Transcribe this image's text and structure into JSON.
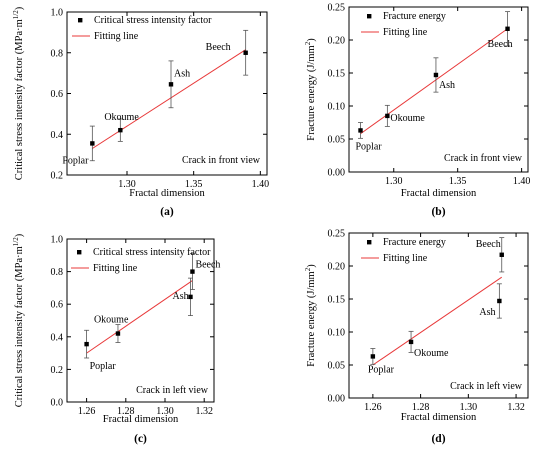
{
  "figure": {
    "colors": {
      "fit": "#e8393a",
      "points": "#000000",
      "error": "#555555"
    }
  },
  "chart_data": [
    {
      "panel": "a",
      "caption": "(a)",
      "type": "scatter",
      "xlabel": "Fractal dimension",
      "ylabel": "Critical stress intensity factor (MPa·m^1/2)",
      "ylabel_main": "Critical stress intensity factor (MPa·m",
      "ylabel_sup": "1/2",
      "ylabel_end": ")",
      "xlim": [
        1.255,
        1.405
      ],
      "ylim": [
        0.2,
        1.0
      ],
      "xticks": [
        1.3,
        1.35,
        1.4
      ],
      "xtick_labels": [
        "1.30",
        "1.35",
        "1.40"
      ],
      "yticks": [
        0.2,
        0.4,
        0.6,
        0.8,
        1.0
      ],
      "ytick_labels": [
        "0.2",
        "0.4",
        "0.6",
        "0.8",
        "1.0"
      ],
      "legend": {
        "position": "top-left",
        "points_label": "Critical stress intensity factor",
        "fit_label": "Fitting line"
      },
      "note": "Crack in front view",
      "points": [
        {
          "label": "Poplar",
          "x": 1.274,
          "y": 0.355,
          "err": 0.085
        },
        {
          "label": "Okoume",
          "x": 1.295,
          "y": 0.42,
          "err": 0.055
        },
        {
          "label": "Ash",
          "x": 1.333,
          "y": 0.645,
          "err": 0.115
        },
        {
          "label": "Beech",
          "x": 1.389,
          "y": 0.8,
          "err": 0.11
        }
      ],
      "fit": {
        "x": [
          1.274,
          1.389
        ],
        "y": [
          0.33,
          0.815
        ]
      }
    },
    {
      "panel": "b",
      "caption": "(b)",
      "type": "scatter",
      "xlabel": "Fractal dimension",
      "ylabel": "Fracture energy (J/mm^2)",
      "ylabel_main": "Fracture energy (J/mm",
      "ylabel_sup": "2",
      "ylabel_end": ")",
      "xlim": [
        1.265,
        1.405
      ],
      "ylim": [
        0.0,
        0.25
      ],
      "xticks": [
        1.3,
        1.35,
        1.4
      ],
      "xtick_labels": [
        "1.30",
        "1.35",
        "1.40"
      ],
      "yticks": [
        0.0,
        0.05,
        0.1,
        0.15,
        0.2,
        0.25
      ],
      "ytick_labels": [
        "0.00",
        "0.05",
        "0.10",
        "0.15",
        "0.20",
        "0.25"
      ],
      "legend": {
        "position": "top-left",
        "points_label": "Fracture energy",
        "fit_label": "Fitting line"
      },
      "note": "Crack in front view",
      "points": [
        {
          "label": "Poplar",
          "x": 1.274,
          "y": 0.063,
          "err": 0.012
        },
        {
          "label": "Okoume",
          "x": 1.295,
          "y": 0.085,
          "err": 0.016
        },
        {
          "label": "Ash",
          "x": 1.333,
          "y": 0.147,
          "err": 0.026
        },
        {
          "label": "Beech",
          "x": 1.389,
          "y": 0.217,
          "err": 0.026
        }
      ],
      "fit": {
        "x": [
          1.274,
          1.389
        ],
        "y": [
          0.058,
          0.217
        ]
      }
    },
    {
      "panel": "c",
      "caption": "(c)",
      "type": "scatter",
      "xlabel": "Fractal dimension",
      "ylabel": "Critical stress intensity factor (MPa·m^1/2)",
      "ylabel_main": "Critical stress intensity factor (MPa·m",
      "ylabel_sup": "1/2",
      "ylabel_end": ")",
      "xlim": [
        1.25,
        1.325
      ],
      "ylim": [
        0.0,
        1.0
      ],
      "xticks": [
        1.26,
        1.28,
        1.3,
        1.32
      ],
      "xtick_labels": [
        "1.26",
        "1.28",
        "1.30",
        "1.32"
      ],
      "yticks": [
        0.0,
        0.2,
        0.4,
        0.6,
        0.8,
        1.0
      ],
      "ytick_labels": [
        "0.0",
        "0.2",
        "0.4",
        "0.6",
        "0.8",
        "1.0"
      ],
      "legend": {
        "position": "top-left",
        "points_label": "Critical stress intensity factor",
        "fit_label": "Fitting line"
      },
      "note": "Crack in left view",
      "points": [
        {
          "label": "Poplar",
          "x": 1.26,
          "y": 0.355,
          "err": 0.085
        },
        {
          "label": "Okoume",
          "x": 1.276,
          "y": 0.42,
          "err": 0.055
        },
        {
          "label": "Ash",
          "x": 1.313,
          "y": 0.645,
          "err": 0.115
        },
        {
          "label": "Beech",
          "x": 1.314,
          "y": 0.8,
          "err": 0.11
        }
      ],
      "fit": {
        "x": [
          1.26,
          1.314
        ],
        "y": [
          0.3,
          0.745
        ]
      }
    },
    {
      "panel": "d",
      "caption": "(d)",
      "type": "scatter",
      "xlabel": "Fractal dimension",
      "ylabel": "Fracture energy (J/mm^2)",
      "ylabel_main": "Fracture energy (J/mm",
      "ylabel_sup": "2",
      "ylabel_end": ")",
      "xlim": [
        1.25,
        1.325
      ],
      "ylim": [
        0.0,
        0.25
      ],
      "xticks": [
        1.26,
        1.28,
        1.3,
        1.32
      ],
      "xtick_labels": [
        "1.26",
        "1.28",
        "1.30",
        "1.32"
      ],
      "yticks": [
        0.0,
        0.05,
        0.1,
        0.15,
        0.2,
        0.25
      ],
      "ytick_labels": [
        "0.00",
        "0.05",
        "0.10",
        "0.15",
        "0.20",
        "0.25"
      ],
      "legend": {
        "position": "top-left",
        "points_label": "Fracture energy",
        "fit_label": "Fitting line"
      },
      "note": "Crack in left view",
      "points": [
        {
          "label": "Poplar",
          "x": 1.26,
          "y": 0.063,
          "err": 0.012
        },
        {
          "label": "Okoume",
          "x": 1.276,
          "y": 0.085,
          "err": 0.016
        },
        {
          "label": "Ash",
          "x": 1.313,
          "y": 0.147,
          "err": 0.026
        },
        {
          "label": "Beech",
          "x": 1.314,
          "y": 0.217,
          "err": 0.026
        }
      ],
      "fit": {
        "x": [
          1.26,
          1.314
        ],
        "y": [
          0.05,
          0.183
        ]
      }
    }
  ]
}
